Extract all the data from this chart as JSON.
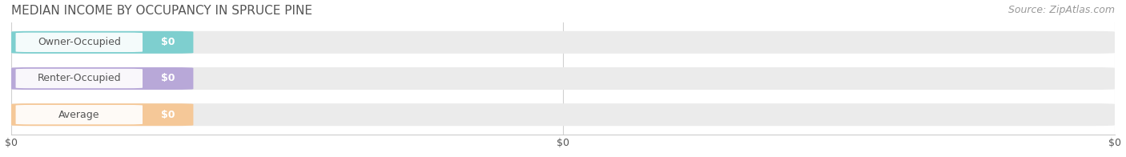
{
  "title": "MEDIAN INCOME BY OCCUPANCY IN SPRUCE PINE",
  "source": "Source: ZipAtlas.com",
  "categories": [
    "Owner-Occupied",
    "Renter-Occupied",
    "Average"
  ],
  "values": [
    0,
    0,
    0
  ],
  "bar_colors": [
    "#7ecfcf",
    "#b8a8d8",
    "#f5c898"
  ],
  "bar_bg_color": "#ebebeb",
  "value_labels": [
    "$0",
    "$0",
    "$0"
  ],
  "x_tick_labels": [
    "$0",
    "$0",
    "$0"
  ],
  "x_tick_positions": [
    0.0,
    0.5,
    1.0
  ],
  "title_fontsize": 11,
  "source_fontsize": 9,
  "bar_label_fontsize": 9,
  "value_fontsize": 9,
  "tick_fontsize": 9,
  "background_color": "#ffffff",
  "text_color": "#555555",
  "title_color": "#555555"
}
